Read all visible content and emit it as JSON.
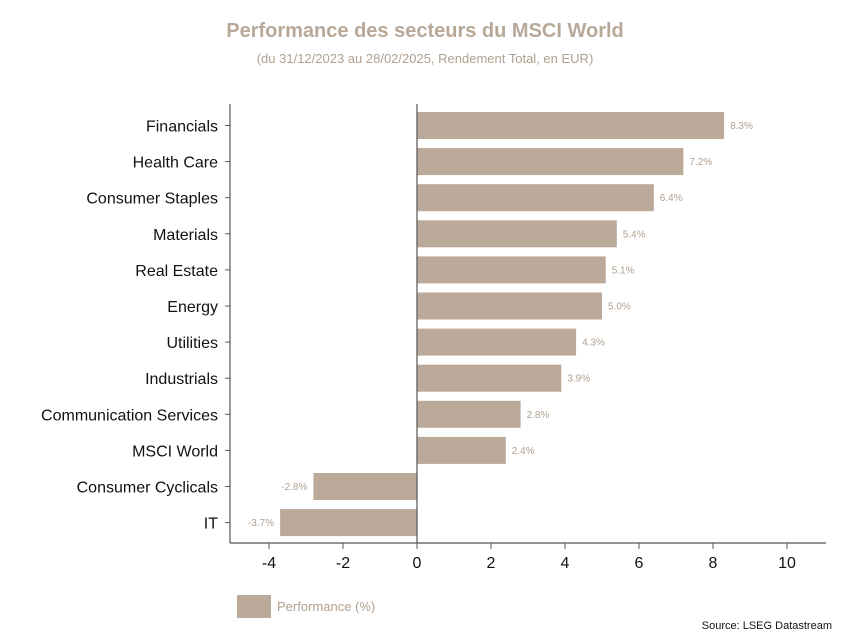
{
  "chart_data": {
    "type": "bar",
    "orientation": "horizontal",
    "title": "Performance des secteurs du MSCI World",
    "subtitle": "(du 31/12/2023 au 28/02/2025, Rendement Total, en EUR)",
    "categories": [
      "Financials",
      "Health Care",
      "Consumer Staples",
      "Materials",
      "Real Estate",
      "Energy",
      "Utilities",
      "Industrials",
      "Communication Services",
      "MSCI World",
      "Consumer Cyclicals",
      "IT"
    ],
    "values": [
      8.3,
      7.2,
      6.4,
      5.4,
      5.1,
      5.0,
      4.3,
      3.9,
      2.8,
      2.4,
      -2.8,
      -3.7
    ],
    "value_labels": [
      "8.3%",
      "7.2%",
      "6.4%",
      "5.4%",
      "5.1%",
      "5.0%",
      "4.3%",
      "3.9%",
      "2.8%",
      "2.4%",
      "-2.8%",
      "-3.7%"
    ],
    "xlim": [
      -5,
      11
    ],
    "xticks": [
      -4,
      -2,
      0,
      2,
      4,
      6,
      8,
      10
    ],
    "xtick_labels": [
      "-4",
      "-2",
      "0",
      "2",
      "4",
      "6",
      "8",
      "10"
    ],
    "grid": false,
    "legend": {
      "position": "bottom-left",
      "entries": [
        "Performance (%)"
      ]
    },
    "colors": {
      "bar": "#bba99a",
      "axis": "#555555",
      "value_label": "#b0a090",
      "title": "#b8a898"
    }
  },
  "source": "Source: LSEG Datastream"
}
